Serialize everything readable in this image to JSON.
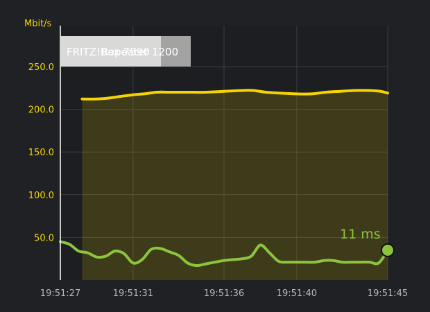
{
  "chart_data": {
    "type": "area",
    "y_unit": "Mbit/s",
    "ylim": [
      0,
      250
    ],
    "y_ticks": [
      50,
      100,
      150,
      200,
      250
    ],
    "y_tick_labels": [
      "50.0",
      "100.0",
      "150.0",
      "200.0",
      "250.0"
    ],
    "x_range_seconds": [
      27,
      45
    ],
    "x_ticks": [
      27,
      31,
      36,
      40,
      45
    ],
    "x_tick_labels": [
      "19:51:27",
      "19:51:31",
      "19:51:36",
      "19:51:40",
      "19:51:45"
    ],
    "grid": true,
    "series": [
      {
        "color": "#f5d400",
        "fill": "rgba(245,212,0,0.16)",
        "x": [
          28.2,
          29,
          29.6,
          30.3,
          31,
          31.6,
          32.3,
          33,
          34,
          35,
          36,
          37,
          37.6,
          38.3,
          39,
          40,
          40.8,
          41.6,
          42.4,
          43.2,
          44,
          44.6,
          45
        ],
        "y": [
          212,
          212,
          213,
          215,
          217,
          218,
          220,
          220,
          220,
          220,
          221,
          222,
          222,
          220,
          219,
          218,
          218,
          220,
          221,
          222,
          222,
          221,
          219
        ]
      },
      {
        "color": "#8cc43c",
        "x": [
          27,
          27.5,
          28,
          28.5,
          29,
          29.5,
          30,
          30.5,
          31,
          31.5,
          32,
          32.5,
          33,
          33.5,
          34,
          34.5,
          35,
          35.5,
          36,
          36.5,
          37,
          37.5,
          38,
          38.5,
          39,
          39.5,
          40,
          40.5,
          41,
          41.5,
          42,
          42.5,
          43,
          43.5,
          44,
          44.5,
          45
        ],
        "y": [
          45,
          42,
          34,
          32,
          27,
          28,
          34,
          31,
          20,
          24,
          36,
          37,
          33,
          29,
          20,
          17,
          19,
          21,
          23,
          24,
          25,
          28,
          41,
          32,
          22,
          21,
          21,
          21,
          21,
          23,
          23,
          21,
          21,
          21,
          21,
          20,
          35
        ]
      }
    ],
    "annotation": "11 ms",
    "tooltip": {
      "overlapping_labels": [
        "FRITZ!Box 7590",
        "Repeater 1200"
      ]
    }
  }
}
